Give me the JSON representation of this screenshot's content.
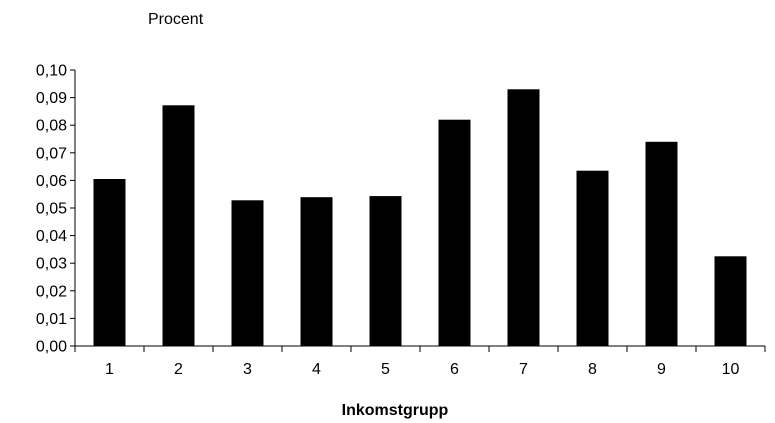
{
  "chart_data": {
    "type": "bar",
    "ylabel": "Procent",
    "xlabel": "Inkomstgrupp",
    "categories": [
      "1",
      "2",
      "3",
      "4",
      "5",
      "6",
      "7",
      "8",
      "9",
      "10"
    ],
    "values": [
      0.0605,
      0.0872,
      0.0528,
      0.0539,
      0.0543,
      0.082,
      0.093,
      0.0635,
      0.074,
      0.0325
    ],
    "ylim": [
      0,
      0.1
    ],
    "yticks": [
      "0,00",
      "0,01",
      "0,02",
      "0,03",
      "0,04",
      "0,05",
      "0,06",
      "0,07",
      "0,08",
      "0,09",
      "0,10"
    ],
    "grid": false,
    "legend": "none",
    "bar_color": "#000000"
  }
}
